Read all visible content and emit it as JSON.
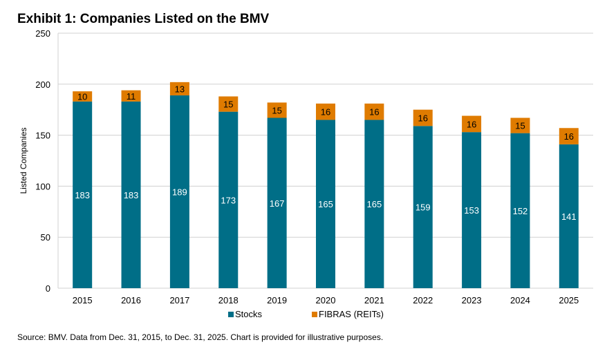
{
  "title": "Exhibit 1: Companies Listed on the BMV",
  "source": "Source: BMV.  Data from Dec. 31, 2015, to Dec. 31, 2025.  Chart is provided for illustrative purposes.",
  "chart_data": {
    "type": "bar",
    "stacked": true,
    "title": "Exhibit 1: Companies Listed on the BMV",
    "xlabel": "",
    "ylabel": "Listed Companies",
    "ylim": [
      0,
      250
    ],
    "yticks": [
      0,
      50,
      100,
      150,
      200,
      250
    ],
    "grid": true,
    "legend": "bottom",
    "categories": [
      "2015",
      "2016",
      "2017",
      "2018",
      "2019",
      "2020",
      "2021",
      "2022",
      "2023",
      "2024",
      "2025"
    ],
    "series": [
      {
        "name": "Stocks",
        "color": "#006E87",
        "label_color": "#ffffff",
        "values": [
          183,
          183,
          189,
          173,
          167,
          165,
          165,
          159,
          153,
          152,
          141
        ]
      },
      {
        "name": "FIBRAS (REITs)",
        "color": "#DF7B00",
        "label_color": "#000000",
        "values": [
          10,
          11,
          13,
          15,
          15,
          16,
          16,
          16,
          16,
          15,
          16
        ]
      }
    ]
  }
}
